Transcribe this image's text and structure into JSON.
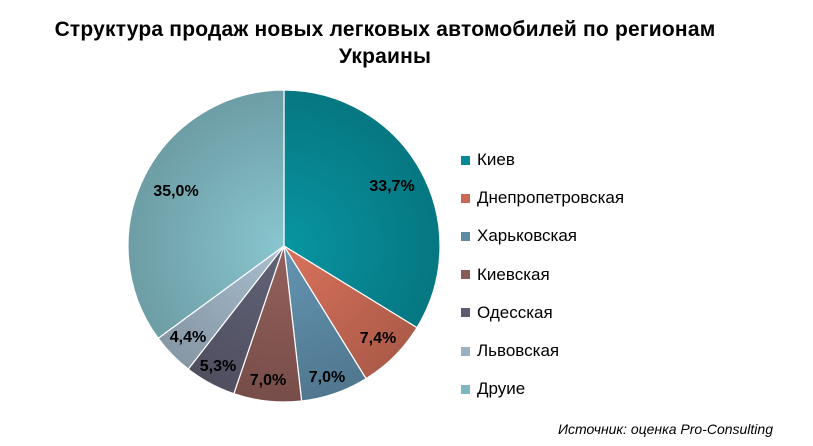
{
  "title_line1": "Структура  продаж  новых  легковых  автомобилей  по  регионам",
  "title_line2": "Украины",
  "source": "Источник: оценка Pro-Consulting",
  "chart_data": {
    "type": "pie",
    "title": "Структура продаж новых легковых автомобилей по регионам Украины",
    "slices": [
      {
        "name": "Киев",
        "value": 33.7,
        "label": "33,7%",
        "color": "#078a96"
      },
      {
        "name": "Днепропетровская",
        "value": 7.4,
        "label": "7,4%",
        "color": "#c96a55"
      },
      {
        "name": "Харьковская",
        "value": 7.0,
        "label": "7,0%",
        "color": "#5d8aa6"
      },
      {
        "name": "Киевская",
        "value": 7.0,
        "label": "7,0%",
        "color": "#8a5a55"
      },
      {
        "name": "Одесская",
        "value": 5.3,
        "label": "5,3%",
        "color": "#5c5c70"
      },
      {
        "name": "Львовская",
        "value": 4.4,
        "label": "4,4%",
        "color": "#9cb0c0"
      },
      {
        "name": "Друие",
        "value": 35.0,
        "label": "35,0%",
        "color": "#7fb7c0"
      }
    ],
    "start_angle": "12 o'clock",
    "direction": "clockwise",
    "legend_position": "right"
  }
}
